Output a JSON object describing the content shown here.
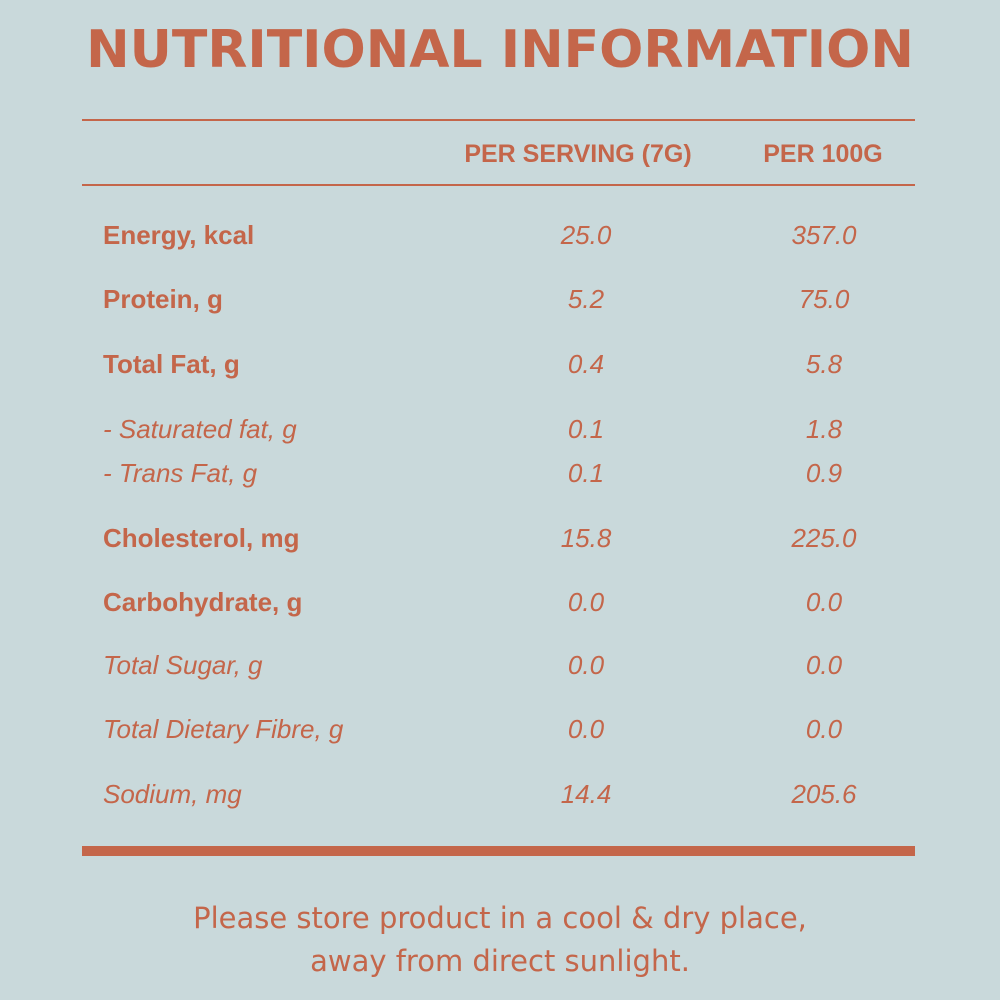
{
  "title": "NUTRITIONAL INFORMATION",
  "columns": {
    "per_serving": "PER SERVING (7G)",
    "per_100g": "PER 100G"
  },
  "rows": [
    {
      "label": "Energy, kcal",
      "per_serving": "25.0",
      "per_100g": "357.0",
      "style": "bold"
    },
    {
      "label": "Protein, g",
      "per_serving": "5.2",
      "per_100g": "75.0",
      "style": "bold"
    },
    {
      "label": "Total Fat, g",
      "per_serving": "0.4",
      "per_100g": "5.8",
      "style": "bold"
    },
    {
      "label": "- Saturated fat, g",
      "per_serving": "0.1",
      "per_100g": "1.8",
      "style": "italic"
    },
    {
      "label": "- Trans Fat, g",
      "per_serving": "0.1",
      "per_100g": "0.9",
      "style": "italic"
    },
    {
      "label": "Cholesterol, mg",
      "per_serving": "15.8",
      "per_100g": "225.0",
      "style": "bold"
    },
    {
      "label": "Carbohydrate, g",
      "per_serving": "0.0",
      "per_100g": "0.0",
      "style": "bold"
    },
    {
      "label": "Total Sugar, g",
      "per_serving": "0.0",
      "per_100g": "0.0",
      "style": "italic"
    },
    {
      "label": "Total Dietary Fibre, g",
      "per_serving": "0.0",
      "per_100g": "0.0",
      "style": "italic"
    },
    {
      "label": "Sodium, mg",
      "per_serving": "14.4",
      "per_100g": "205.6",
      "style": "italic"
    }
  ],
  "footer": {
    "line1": "Please store product in a cool & dry place,",
    "line2": "away from direct sunlight."
  },
  "colors": {
    "background": "#c9d9db",
    "accent": "#c4664a"
  }
}
